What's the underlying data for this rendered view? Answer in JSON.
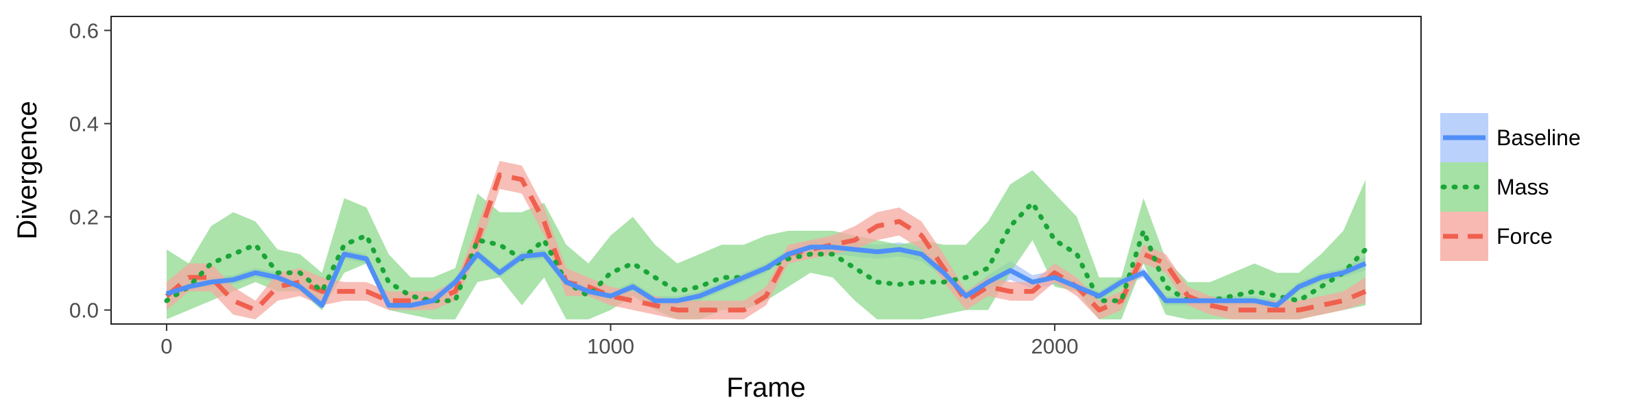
{
  "chart_data": {
    "type": "line",
    "title": "",
    "xlabel": "Frame",
    "ylabel": "Divergence",
    "xlim": [
      -125,
      2825
    ],
    "ylim": [
      -0.03,
      0.63
    ],
    "x_ticks": [
      0,
      1000,
      2000
    ],
    "x_tick_labels": [
      "0",
      "1000",
      "2000"
    ],
    "y_ticks": [
      0.0,
      0.2,
      0.4,
      0.6
    ],
    "y_tick_labels": [
      "0.0",
      "0.2",
      "0.4",
      "0.6"
    ],
    "grid": false,
    "legend_position": "right",
    "series": [
      {
        "name": "Baseline",
        "color": "#4f8ff7",
        "band_color": "#a9c6fb",
        "line_style": "solid",
        "x": [
          0,
          50,
          100,
          150,
          200,
          250,
          300,
          350,
          400,
          450,
          500,
          550,
          600,
          650,
          700,
          750,
          800,
          850,
          900,
          950,
          1000,
          1050,
          1100,
          1150,
          1200,
          1250,
          1300,
          1350,
          1400,
          1450,
          1500,
          1550,
          1600,
          1650,
          1700,
          1750,
          1800,
          1850,
          1900,
          1950,
          2000,
          2050,
          2100,
          2150,
          2200,
          2250,
          2300,
          2350,
          2400,
          2450,
          2500,
          2550,
          2600,
          2650,
          2700
        ],
        "y": [
          0.035,
          0.05,
          0.06,
          0.065,
          0.08,
          0.07,
          0.05,
          0.01,
          0.12,
          0.11,
          0.01,
          0.01,
          0.02,
          0.06,
          0.12,
          0.08,
          0.115,
          0.12,
          0.06,
          0.04,
          0.03,
          0.05,
          0.02,
          0.02,
          0.03,
          0.05,
          0.07,
          0.09,
          0.12,
          0.135,
          0.135,
          0.13,
          0.125,
          0.13,
          0.12,
          0.08,
          0.03,
          0.06,
          0.085,
          0.06,
          0.07,
          0.05,
          0.03,
          0.06,
          0.08,
          0.02,
          0.02,
          0.02,
          0.02,
          0.02,
          0.01,
          0.05,
          0.07,
          0.08,
          0.1
        ],
        "lower": [
          0.025,
          0.04,
          0.05,
          0.055,
          0.07,
          0.06,
          0.04,
          0.0,
          0.11,
          0.1,
          0.0,
          0.0,
          0.01,
          0.05,
          0.11,
          0.07,
          0.105,
          0.11,
          0.05,
          0.03,
          0.02,
          0.04,
          0.01,
          0.01,
          0.02,
          0.04,
          0.06,
          0.08,
          0.11,
          0.12,
          0.12,
          0.115,
          0.11,
          0.115,
          0.105,
          0.07,
          0.02,
          0.045,
          0.065,
          0.045,
          0.055,
          0.04,
          0.02,
          0.05,
          0.07,
          0.01,
          0.01,
          0.01,
          0.01,
          0.01,
          0.0,
          0.04,
          0.06,
          0.07,
          0.085
        ],
        "upper": [
          0.045,
          0.06,
          0.07,
          0.075,
          0.09,
          0.08,
          0.06,
          0.02,
          0.13,
          0.12,
          0.02,
          0.02,
          0.03,
          0.07,
          0.13,
          0.09,
          0.125,
          0.13,
          0.07,
          0.05,
          0.04,
          0.06,
          0.03,
          0.03,
          0.04,
          0.06,
          0.08,
          0.1,
          0.13,
          0.15,
          0.15,
          0.145,
          0.14,
          0.145,
          0.135,
          0.09,
          0.04,
          0.075,
          0.105,
          0.075,
          0.085,
          0.06,
          0.04,
          0.07,
          0.09,
          0.03,
          0.03,
          0.03,
          0.03,
          0.03,
          0.02,
          0.06,
          0.08,
          0.09,
          0.115
        ]
      },
      {
        "name": "Mass",
        "color": "#1aa537",
        "band_color": "#8fd98f",
        "line_style": "dotted",
        "x": [
          0,
          50,
          100,
          150,
          200,
          250,
          300,
          350,
          400,
          450,
          500,
          550,
          600,
          650,
          700,
          750,
          800,
          850,
          900,
          950,
          1000,
          1050,
          1100,
          1150,
          1200,
          1250,
          1300,
          1350,
          1400,
          1450,
          1500,
          1550,
          1600,
          1650,
          1700,
          1750,
          1800,
          1850,
          1900,
          1950,
          2000,
          2050,
          2100,
          2150,
          2200,
          2250,
          2300,
          2350,
          2400,
          2450,
          2500,
          2550,
          2600,
          2650,
          2700
        ],
        "y": [
          0.02,
          0.05,
          0.1,
          0.12,
          0.14,
          0.08,
          0.08,
          0.04,
          0.14,
          0.16,
          0.06,
          0.03,
          0.02,
          0.02,
          0.15,
          0.14,
          0.11,
          0.15,
          0.06,
          0.03,
          0.08,
          0.1,
          0.07,
          0.04,
          0.05,
          0.07,
          0.07,
          0.09,
          0.11,
          0.12,
          0.12,
          0.09,
          0.06,
          0.055,
          0.06,
          0.06,
          0.07,
          0.09,
          0.18,
          0.23,
          0.15,
          0.12,
          0.02,
          0.02,
          0.17,
          0.05,
          0.02,
          0.02,
          0.03,
          0.04,
          0.03,
          0.02,
          0.05,
          0.08,
          0.13
        ],
        "lower": [
          -0.02,
          0.0,
          0.02,
          0.04,
          0.06,
          0.04,
          0.04,
          0.0,
          0.08,
          0.1,
          0.0,
          -0.01,
          -0.02,
          -0.02,
          0.06,
          0.07,
          0.01,
          0.07,
          -0.02,
          -0.02,
          0.0,
          0.03,
          0.0,
          -0.02,
          -0.02,
          0.0,
          0.0,
          0.02,
          0.05,
          0.08,
          0.07,
          0.02,
          -0.02,
          -0.02,
          -0.02,
          -0.01,
          0.0,
          0.0,
          0.08,
          0.15,
          0.05,
          0.04,
          -0.02,
          -0.02,
          0.1,
          -0.01,
          -0.02,
          -0.02,
          -0.02,
          -0.02,
          -0.02,
          -0.02,
          -0.01,
          0.0,
          0.01
        ],
        "upper": [
          0.13,
          0.1,
          0.18,
          0.21,
          0.19,
          0.13,
          0.12,
          0.08,
          0.24,
          0.22,
          0.12,
          0.07,
          0.07,
          0.09,
          0.25,
          0.21,
          0.21,
          0.23,
          0.14,
          0.1,
          0.16,
          0.2,
          0.14,
          0.1,
          0.12,
          0.14,
          0.14,
          0.16,
          0.17,
          0.17,
          0.17,
          0.16,
          0.15,
          0.14,
          0.15,
          0.14,
          0.14,
          0.19,
          0.27,
          0.3,
          0.25,
          0.2,
          0.07,
          0.07,
          0.24,
          0.11,
          0.06,
          0.06,
          0.08,
          0.1,
          0.08,
          0.08,
          0.12,
          0.17,
          0.28
        ]
      },
      {
        "name": "Force",
        "color": "#f0604e",
        "band_color": "#f6a8a0",
        "line_style": "dashed",
        "x": [
          0,
          50,
          100,
          150,
          200,
          250,
          300,
          350,
          400,
          450,
          500,
          550,
          600,
          650,
          700,
          750,
          800,
          850,
          900,
          950,
          1000,
          1050,
          1100,
          1150,
          1200,
          1250,
          1300,
          1350,
          1400,
          1450,
          1500,
          1550,
          1600,
          1650,
          1700,
          1750,
          1800,
          1850,
          1900,
          1950,
          2000,
          2050,
          2100,
          2150,
          2200,
          2250,
          2300,
          2350,
          2400,
          2450,
          2500,
          2550,
          2600,
          2650,
          2700
        ],
        "y": [
          0.03,
          0.07,
          0.07,
          0.02,
          0.0,
          0.05,
          0.06,
          0.04,
          0.04,
          0.04,
          0.02,
          0.02,
          0.02,
          0.04,
          0.15,
          0.29,
          0.28,
          0.19,
          0.06,
          0.05,
          0.03,
          0.02,
          0.01,
          0.0,
          0.0,
          0.0,
          0.0,
          0.03,
          0.12,
          0.13,
          0.14,
          0.15,
          0.18,
          0.19,
          0.16,
          0.09,
          0.02,
          0.05,
          0.04,
          0.04,
          0.08,
          0.05,
          0.0,
          0.02,
          0.12,
          0.1,
          0.03,
          0.01,
          0.0,
          0.0,
          0.0,
          0.0,
          0.01,
          0.02,
          0.04
        ],
        "lower": [
          0.0,
          0.04,
          0.04,
          -0.01,
          -0.02,
          0.02,
          0.03,
          0.01,
          0.02,
          0.02,
          0.0,
          0.0,
          0.0,
          0.02,
          0.12,
          0.26,
          0.25,
          0.16,
          0.03,
          0.03,
          0.01,
          0.0,
          -0.01,
          -0.02,
          -0.02,
          -0.02,
          -0.02,
          0.01,
          0.1,
          0.11,
          0.12,
          0.13,
          0.15,
          0.16,
          0.13,
          0.06,
          0.0,
          0.03,
          0.02,
          0.02,
          0.06,
          0.03,
          -0.02,
          0.0,
          0.1,
          0.08,
          0.01,
          -0.01,
          -0.02,
          -0.02,
          -0.02,
          -0.02,
          -0.01,
          0.0,
          0.015
        ],
        "upper": [
          0.06,
          0.1,
          0.1,
          0.05,
          0.02,
          0.08,
          0.09,
          0.07,
          0.06,
          0.06,
          0.04,
          0.04,
          0.04,
          0.06,
          0.18,
          0.32,
          0.31,
          0.22,
          0.09,
          0.07,
          0.05,
          0.04,
          0.03,
          0.02,
          0.02,
          0.02,
          0.02,
          0.05,
          0.14,
          0.15,
          0.16,
          0.18,
          0.21,
          0.22,
          0.19,
          0.12,
          0.04,
          0.07,
          0.06,
          0.06,
          0.1,
          0.07,
          0.02,
          0.04,
          0.14,
          0.12,
          0.05,
          0.03,
          0.02,
          0.02,
          0.02,
          0.02,
          0.03,
          0.04,
          0.07
        ]
      }
    ]
  }
}
